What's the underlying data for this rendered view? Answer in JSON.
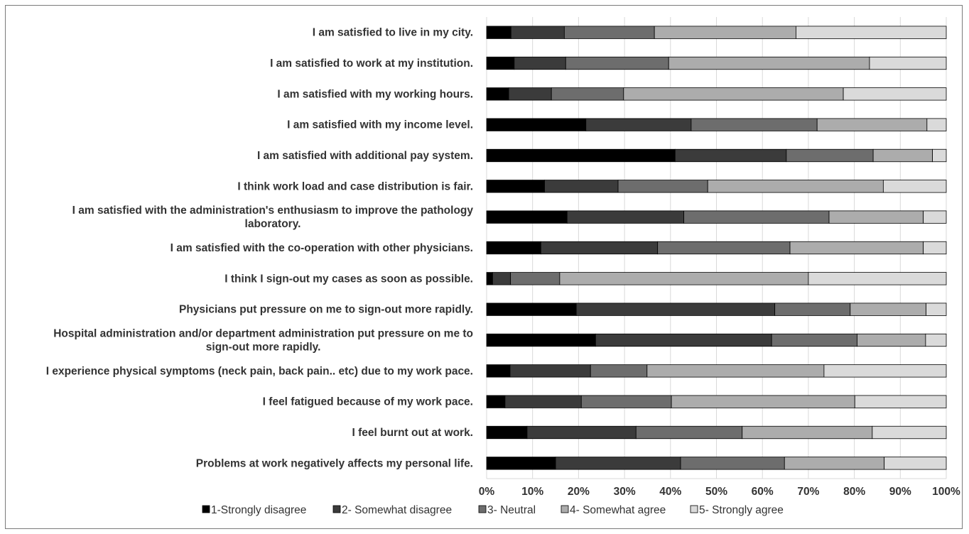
{
  "chart_data": {
    "type": "bar",
    "orientation": "horizontal",
    "stacked": "percent",
    "categories": [
      "I am satisfied to live in my city.",
      "I am satisfied to work at my institution.",
      "I am satisfied with my working hours.",
      "I am satisfied with my income level.",
      "I am satisfied with additional pay system.",
      "I think work load and case distribution is fair.",
      "I am satisfied with the administration's enthusiasm to improve the pathology laboratory.",
      "I am satisfied with the co-operation with other physicians.",
      "I think I sign-out my cases as soon as possible.",
      "Physicians put pressure on me to sign-out more rapidly.",
      "Hospital administration and/or department administration put pressure on me to sign-out more rapidly.",
      "I experience physical symptoms (neck pain, back pain.. etc) due to my work pace.",
      "I feel fatigued because of my work pace.",
      "I feel burnt out at work.",
      "Problems at work negatively affects my personal life."
    ],
    "category_lines": [
      [
        "I am satisfied to live in my city."
      ],
      [
        "I am satisfied to work at my institution."
      ],
      [
        "I am satisfied with my working hours."
      ],
      [
        "I am satisfied with my income level."
      ],
      [
        "I am satisfied with additional pay system."
      ],
      [
        "I think work load and case distribution is fair."
      ],
      [
        "I am satisfied with the administration's enthusiasm to improve the pathology",
        "laboratory."
      ],
      [
        "I am satisfied with the co-operation with other physicians."
      ],
      [
        "I think I sign-out my cases as soon as possible."
      ],
      [
        "Physicians put pressure on me to sign-out more rapidly."
      ],
      [
        "Hospital administration and/or department administration put pressure on me to",
        "sign-out more rapidly."
      ],
      [
        "I experience physical symptoms (neck pain, back pain.. etc) due to my work pace."
      ],
      [
        "I feel fatigued because of my work pace."
      ],
      [
        "I feel burnt out at work."
      ],
      [
        "Problems at work negatively affects my personal life."
      ]
    ],
    "series": [
      {
        "name": "1-Strongly disagree",
        "color": "#000000",
        "values": [
          5.3,
          6.0,
          4.8,
          21.6,
          41.0,
          12.6,
          17.5,
          11.8,
          1.3,
          19.5,
          23.7,
          5.1,
          4.0,
          8.8,
          15.0
        ]
      },
      {
        "name": "2- Somewhat disagree",
        "color": "#3b3b3b",
        "values": [
          11.6,
          11.2,
          9.3,
          22.9,
          24.2,
          16.0,
          25.4,
          25.4,
          3.9,
          43.2,
          38.3,
          17.5,
          16.6,
          23.7,
          27.2
        ]
      },
      {
        "name": "3- Neutral",
        "color": "#6d6d6d",
        "values": [
          19.6,
          22.4,
          15.7,
          27.4,
          18.9,
          19.5,
          31.6,
          28.8,
          10.7,
          16.4,
          18.6,
          12.3,
          19.6,
          23.1,
          22.6
        ]
      },
      {
        "name": "4- Somewhat agree",
        "color": "#acacac",
        "values": [
          30.8,
          43.7,
          47.8,
          23.9,
          12.9,
          38.2,
          20.5,
          29.0,
          54.1,
          16.5,
          14.9,
          38.5,
          39.9,
          28.3,
          21.7
        ]
      },
      {
        "name": "5- Strongly agree",
        "color": "#dadada",
        "values": [
          32.7,
          16.7,
          22.4,
          4.2,
          3.0,
          13.7,
          5.0,
          5.0,
          30.0,
          4.4,
          4.5,
          26.6,
          19.9,
          16.1,
          13.5
        ]
      }
    ],
    "xlim": [
      0,
      100
    ],
    "xticks": [
      "0%",
      "10%",
      "20%",
      "30%",
      "40%",
      "50%",
      "60%",
      "70%",
      "80%",
      "90%",
      "100%"
    ],
    "grid": true,
    "legend": "bottom",
    "title": "",
    "xlabel": "",
    "ylabel": ""
  }
}
